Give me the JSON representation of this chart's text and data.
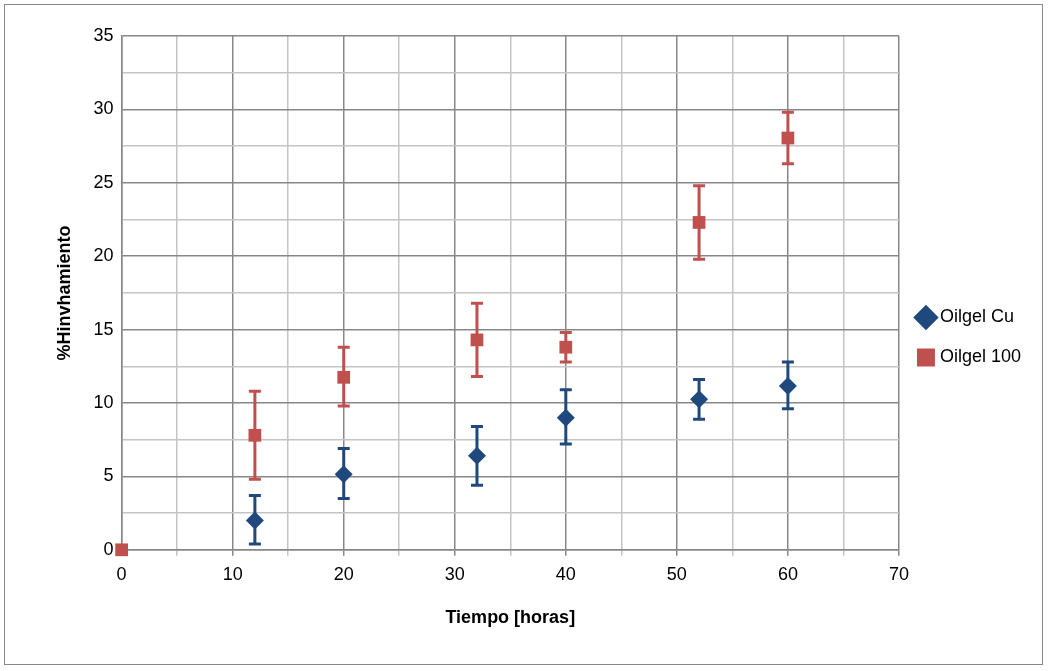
{
  "chart_data": {
    "type": "scatter",
    "xlabel": "Tiempo [horas]",
    "ylabel": "%Hinvhamiento",
    "xlim": [
      0,
      70
    ],
    "xticks": [
      0,
      {
        "value": 5,
        "label": null
      },
      10,
      {
        "value": 15,
        "label": null
      },
      20,
      {
        "value": 25,
        "label": null
      },
      30,
      {
        "value": 35,
        "label": null
      },
      40,
      {
        "value": 45,
        "label": null
      },
      50,
      {
        "value": 55,
        "label": null
      },
      60,
      {
        "value": 65,
        "label": null
      },
      70
    ],
    "ylim": [
      0,
      35
    ],
    "yticks": [
      0,
      {
        "value": 2.5,
        "label": null
      },
      5,
      {
        "value": 7.5,
        "label": null
      },
      10,
      {
        "value": 12.5,
        "label": null
      },
      15,
      {
        "value": 17.5,
        "label": null
      },
      20,
      {
        "value": 22.5,
        "label": null
      },
      25,
      {
        "value": 27.5,
        "label": null
      },
      30,
      {
        "value": 32.5,
        "label": null
      },
      35
    ],
    "grid": true,
    "legend": "right",
    "series": [
      {
        "name": "Oilgel Cu",
        "color": "#1f497d",
        "marker": "diamond",
        "x": [
          12,
          20,
          32,
          40,
          52,
          60
        ],
        "values": [
          2.0,
          5.15,
          6.4,
          9.0,
          10.25,
          11.15
        ],
        "errors": [
          [
            0.4,
            3.7
          ],
          [
            3.5,
            6.9
          ],
          [
            4.4,
            8.4
          ],
          [
            7.2,
            10.9
          ],
          [
            8.9,
            11.6
          ],
          [
            9.6,
            12.8
          ]
        ]
      },
      {
        "name": "Oilgel 100",
        "color": "#c0504d",
        "marker": "square",
        "x": [
          0,
          12,
          20,
          32,
          40,
          52,
          60
        ],
        "values": [
          0,
          7.8,
          11.75,
          14.3,
          13.8,
          22.3,
          28.05
        ],
        "errors": [
          null,
          [
            4.8,
            10.8
          ],
          [
            9.8,
            13.8
          ],
          [
            11.8,
            16.8
          ],
          [
            12.8,
            14.8
          ],
          [
            19.8,
            24.8
          ],
          [
            26.3,
            29.8
          ]
        ]
      }
    ]
  }
}
